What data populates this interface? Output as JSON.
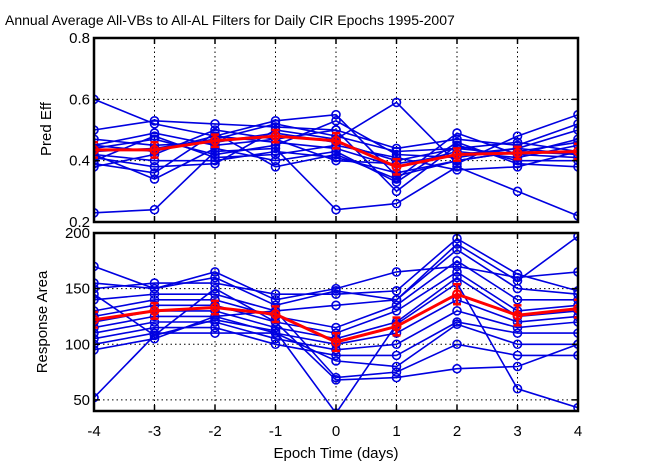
{
  "chart_data": [
    {
      "type": "line",
      "title": "Annual Average All-VBs to All-AL Filters for Daily CIR Epochs  1995-2007",
      "xlabel": "",
      "ylabel": "Pred Eff",
      "xlim": [
        -4,
        4
      ],
      "ylim": [
        0.2,
        0.8
      ],
      "yticks": [
        0.2,
        0.4,
        0.6,
        0.8
      ],
      "ytick_labels": [
        "0.2",
        "0.4",
        "0.6",
        "0.8"
      ],
      "grid": true,
      "x": [
        -4,
        -3,
        -2,
        -1,
        0,
        1,
        2,
        3,
        4
      ],
      "series": [
        {
          "values": [
            0.6,
            0.52,
            0.48,
            0.53,
            0.55,
            0.35,
            0.4,
            0.43,
            0.42
          ]
        },
        {
          "values": [
            0.5,
            0.53,
            0.52,
            0.51,
            0.5,
            0.44,
            0.47,
            0.45,
            0.52
          ]
        },
        {
          "values": [
            0.47,
            0.45,
            0.46,
            0.49,
            0.46,
            0.4,
            0.44,
            0.42,
            0.47
          ]
        },
        {
          "values": [
            0.45,
            0.43,
            0.48,
            0.46,
            0.44,
            0.38,
            0.43,
            0.41,
            0.45
          ]
        },
        {
          "values": [
            0.44,
            0.47,
            0.42,
            0.45,
            0.53,
            0.42,
            0.41,
            0.44,
            0.42
          ]
        },
        {
          "values": [
            0.43,
            0.44,
            0.47,
            0.52,
            0.48,
            0.43,
            0.44,
            0.46,
            0.43
          ]
        },
        {
          "values": [
            0.42,
            0.4,
            0.4,
            0.43,
            0.41,
            0.36,
            0.4,
            0.43,
            0.46
          ]
        },
        {
          "values": [
            0.41,
            0.38,
            0.39,
            0.5,
            0.47,
            0.59,
            0.39,
            0.48,
            0.55
          ]
        },
        {
          "values": [
            0.4,
            0.48,
            0.41,
            0.42,
            0.45,
            0.41,
            0.37,
            0.38,
            0.43
          ]
        },
        {
          "values": [
            0.39,
            0.36,
            0.49,
            0.38,
            0.42,
            0.34,
            0.49,
            0.42,
            0.41
          ]
        },
        {
          "values": [
            0.38,
            0.42,
            0.5,
            0.47,
            0.5,
            0.3,
            0.45,
            0.4,
            0.4
          ]
        },
        {
          "values": [
            0.45,
            0.49,
            0.45,
            0.47,
            0.4,
            0.39,
            0.42,
            0.44,
            0.5
          ]
        },
        {
          "values": [
            0.42,
            0.34,
            0.44,
            0.4,
            0.43,
            0.33,
            0.46,
            0.39,
            0.38
          ]
        },
        {
          "values": [
            0.23,
            0.24,
            0.43,
            0.44,
            0.24,
            0.26,
            0.38,
            0.3,
            0.22
          ]
        }
      ],
      "mean": {
        "values": [
          0.435,
          0.435,
          0.465,
          0.48,
          0.465,
          0.38,
          0.42,
          0.425,
          0.43
        ],
        "error": [
          0.025,
          0.025,
          0.02,
          0.02,
          0.025,
          0.025,
          0.02,
          0.02,
          0.025
        ]
      },
      "colors": {
        "series": "#0000e0",
        "mean": "#ff0000"
      }
    },
    {
      "type": "line",
      "title": "",
      "xlabel": "Epoch Time (days)",
      "ylabel": "Response Area",
      "xlim": [
        -4,
        4
      ],
      "ylim": [
        40,
        200
      ],
      "yticks": [
        50,
        100,
        150,
        200
      ],
      "ytick_labels": [
        "50",
        "100",
        "150",
        "200"
      ],
      "xticks": [
        -4,
        -3,
        -2,
        -1,
        0,
        1,
        2,
        3,
        4
      ],
      "xtick_labels": [
        "-4",
        "-3",
        "-2",
        "-1",
        "0",
        "1",
        "2",
        "3",
        "4"
      ],
      "grid": true,
      "x": [
        -4,
        -3,
        -2,
        -1,
        0,
        1,
        2,
        3,
        4
      ],
      "series": [
        {
          "values": [
            170,
            150,
            165,
            140,
            150,
            165,
            170,
            160,
            165
          ]
        },
        {
          "values": [
            150,
            155,
            155,
            145,
            145,
            148,
            195,
            163,
            148
          ]
        },
        {
          "values": [
            140,
            145,
            145,
            130,
            135,
            140,
            185,
            150,
            145
          ]
        },
        {
          "values": [
            130,
            140,
            140,
            125,
            115,
            135,
            175,
            140,
            140
          ]
        },
        {
          "values": [
            125,
            135,
            135,
            120,
            110,
            130,
            165,
            130,
            135
          ]
        },
        {
          "values": [
            120,
            130,
            130,
            115,
            105,
            120,
            160,
            125,
            130
          ]
        },
        {
          "values": [
            115,
            125,
            125,
            110,
            100,
            110,
            140,
            120,
            125
          ]
        },
        {
          "values": [
            110,
            120,
            120,
            105,
            95,
            100,
            130,
            115,
            120
          ]
        },
        {
          "values": [
            105,
            115,
            115,
            100,
            90,
            90,
            120,
            110,
            110
          ]
        },
        {
          "values": [
            100,
            110,
            110,
            110,
            85,
            80,
            118,
            100,
            100
          ]
        },
        {
          "values": [
            95,
            105,
            125,
            130,
            70,
            75,
            100,
            90,
            90
          ]
        },
        {
          "values": [
            145,
            108,
            150,
            120,
            68,
            70,
            78,
            80,
            100
          ]
        },
        {
          "values": [
            155,
            150,
            160,
            135,
            148,
            140,
            190,
            157,
            197
          ]
        },
        {
          "values": [
            52,
            108,
            122,
            112,
            38,
            118,
            155,
            60,
            43
          ]
        }
      ],
      "mean": {
        "values": [
          122,
          130,
          133,
          127,
          102,
          116,
          145,
          126,
          132
        ],
        "error": [
          7,
          7,
          6,
          7,
          8,
          8,
          9,
          9,
          8
        ]
      },
      "colors": {
        "series": "#0000e0",
        "mean": "#ff0000"
      }
    }
  ]
}
